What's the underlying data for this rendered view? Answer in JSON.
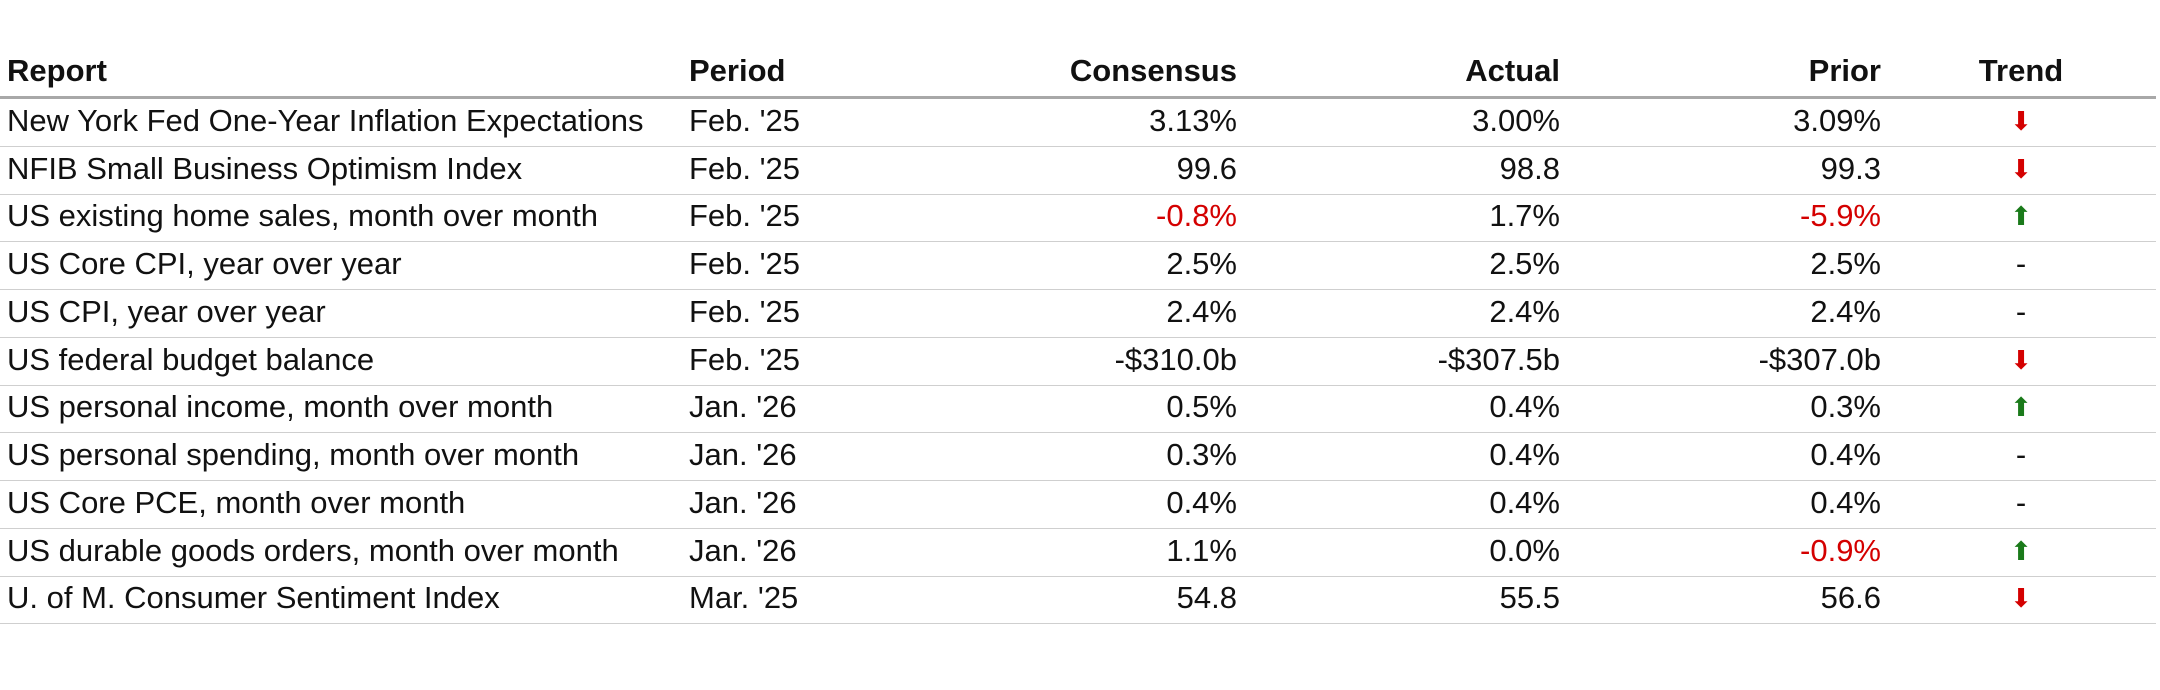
{
  "table": {
    "header": [
      "Report",
      "Period",
      "Consensus",
      "Actual",
      "Prior",
      "Trend"
    ],
    "rows": [
      [
        "New York Fed One-Year Inflation Expectations",
        "Feb. '25",
        "3.13%",
        "3.00%",
        "3.09%",
        "⬇"
      ],
      [
        "NFIB Small Business Optimism Index",
        "Feb. '25",
        "99.6",
        "98.8",
        "99.3",
        "⬇"
      ],
      [
        "US existing home sales, month over month",
        "Feb. '25",
        "-0.8%",
        "1.7%",
        "-5.9%",
        "⬆"
      ],
      [
        "US Core CPI, year over year",
        "Feb. '25",
        "2.5%",
        "2.5%",
        "2.5%",
        "-"
      ],
      [
        "US CPI, year over year",
        "Feb. '25",
        "2.4%",
        "2.4%",
        "2.4%",
        "-"
      ],
      [
        "US federal budget balance",
        "Feb. '25",
        "-$310.0b",
        "-$307.5b",
        "-$307.0b",
        "⬇"
      ],
      [
        "US personal income, month over month",
        "Jan. '26",
        "0.5%",
        "0.4%",
        "0.3%",
        "⬆"
      ],
      [
        "US personal spending, month over month",
        "Jan. '26",
        "0.3%",
        "0.4%",
        "0.4%",
        "-"
      ],
      [
        "US Core PCE, month over month",
        "Jan. '26",
        "0.4%",
        "0.4%",
        "0.4%",
        "-"
      ],
      [
        "US durable goods orders, month over month",
        "Jan. '26",
        "1.1%",
        "0.0%",
        "-0.9%",
        "⬆"
      ],
      [
        "U. of M. Consumer Sentiment Index",
        "Mar. '25",
        "54.8",
        "55.5",
        "56.6",
        "⬇"
      ]
    ]
  }
}
